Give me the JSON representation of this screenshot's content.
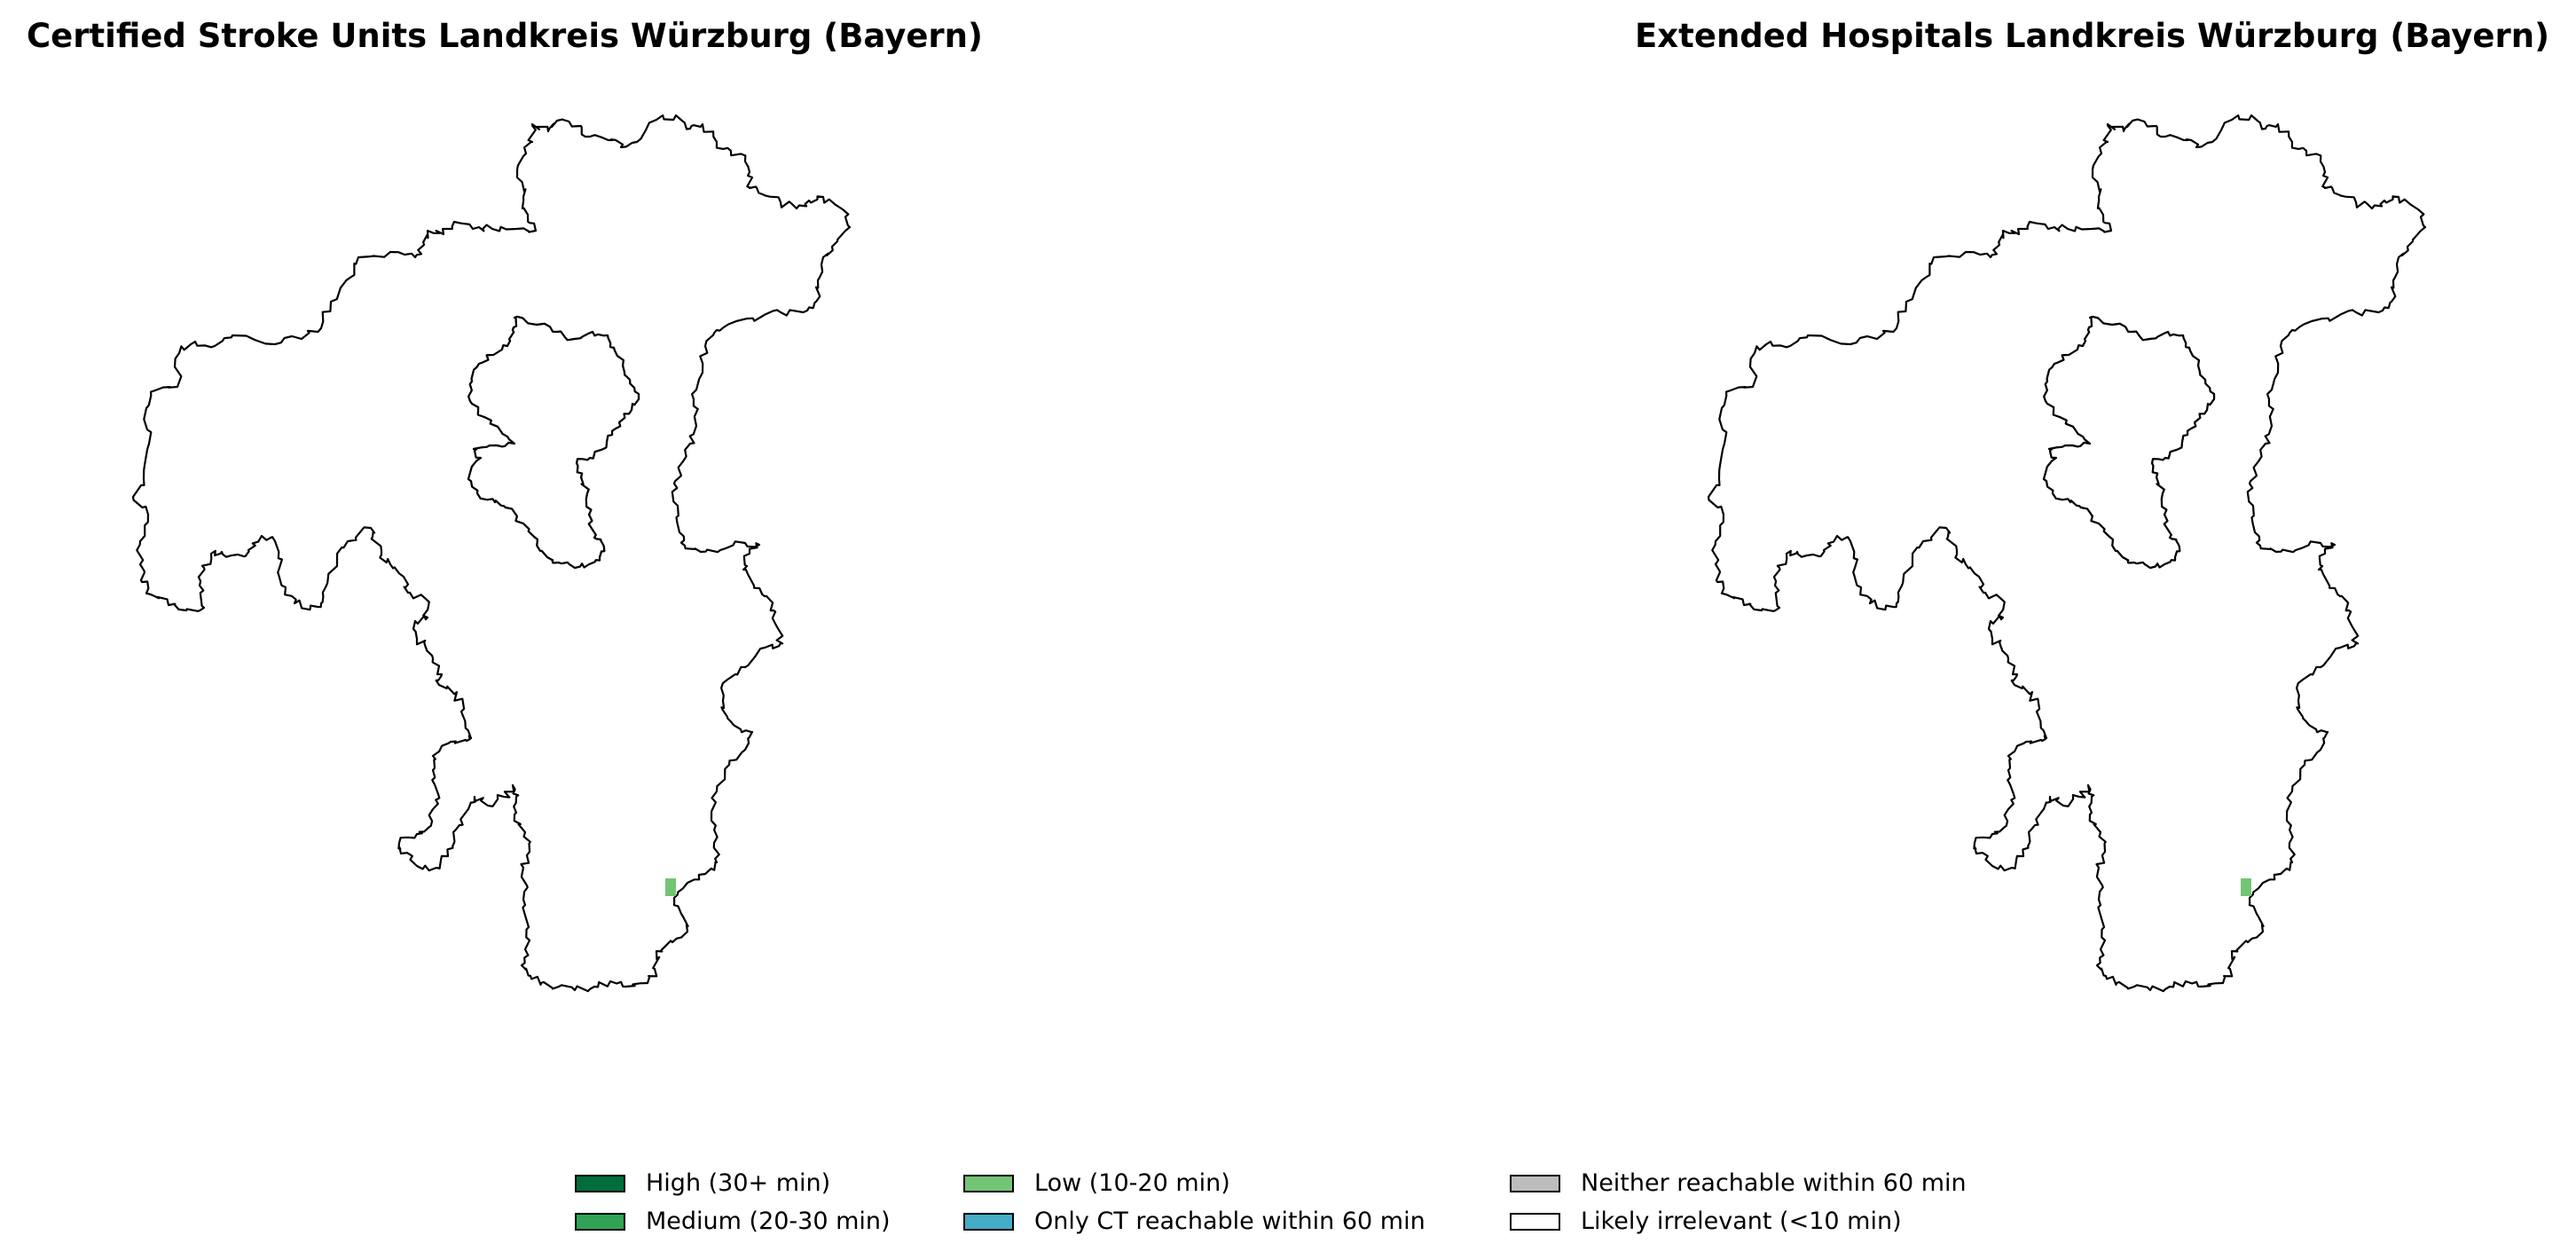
{
  "panels": [
    {
      "title": "Certified Stroke Units Landkreis Würzburg (Bayern)"
    },
    {
      "title": "Extended Hospitals Landkreis Würzburg (Bayern)"
    }
  ],
  "legend": [
    {
      "label": "High (30+ min)",
      "color": "#006d3b"
    },
    {
      "label": "Low (10-20 min)",
      "color": "#74c476"
    },
    {
      "label": "Neither reachable within 60 min",
      "color": "#bdbdbd"
    },
    {
      "label": "Medium (20-30 min)",
      "color": "#31a354"
    },
    {
      "label": "Only CT reachable within 60 min",
      "color": "#43acc6"
    },
    {
      "label": "Likely irrelevant (<10 min)",
      "color": "#ffffff"
    }
  ],
  "map_style": {
    "boundary_color": "#000000",
    "fill_color": "#ffffff",
    "highlight_category": "Low (10-20 min)"
  }
}
